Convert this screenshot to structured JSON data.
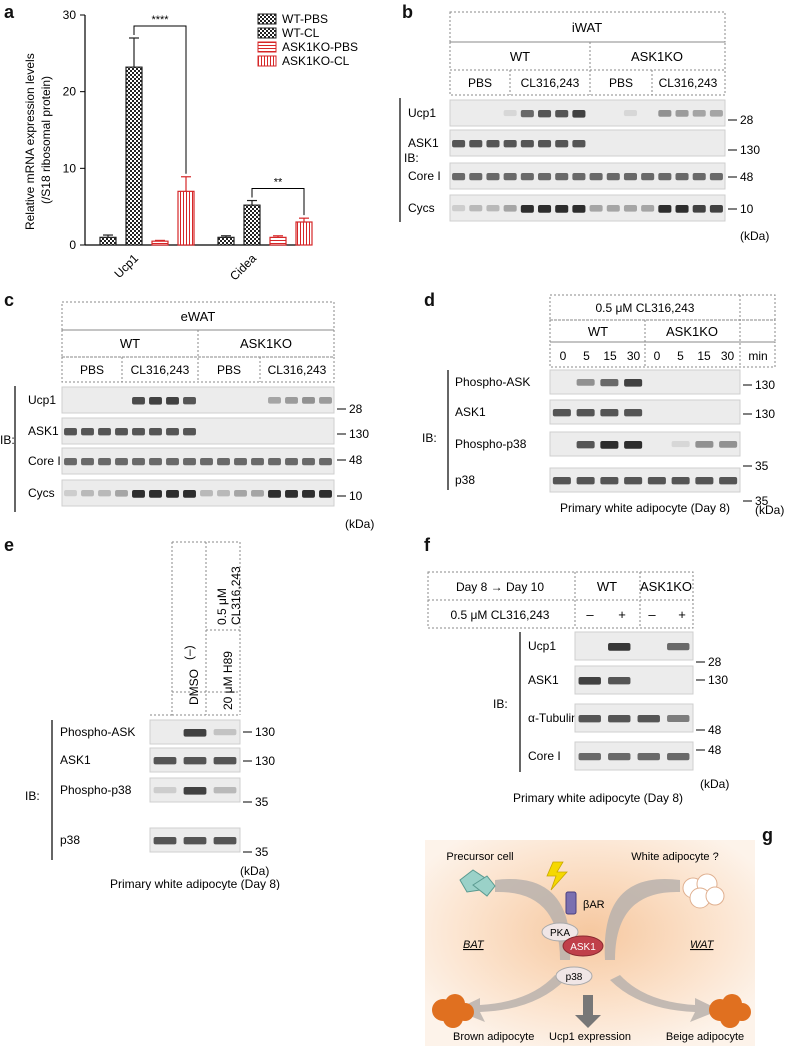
{
  "panel_labels": {
    "a": "a",
    "b": "b",
    "c": "c",
    "d": "d",
    "e": "e",
    "f": "f",
    "g": "g"
  },
  "chart_data": {
    "type": "bar",
    "categories": [
      "Ucp1",
      "Cidea"
    ],
    "series": [
      {
        "name": "WT-PBS",
        "values": [
          1.0,
          1.0
        ],
        "errors": [
          0.3,
          0.2
        ],
        "color": "#222222",
        "pattern": "checker"
      },
      {
        "name": "WT-CL",
        "values": [
          23.2,
          5.2
        ],
        "errors": [
          3.8,
          0.6
        ],
        "color": "#222222",
        "pattern": "checker"
      },
      {
        "name": "ASK1KO-PBS",
        "values": [
          0.5,
          1.0
        ],
        "errors": [
          0.1,
          0.2
        ],
        "color": "#d62728",
        "pattern": "hlines"
      },
      {
        "name": "ASK1KO-CL",
        "values": [
          7.0,
          3.0
        ],
        "errors": [
          1.9,
          0.5
        ],
        "color": "#d62728",
        "pattern": "vlines"
      }
    ],
    "ylabel": "Relative mRNA expression levels\n(/S18 ribosomal protein)",
    "ylim": [
      0,
      30
    ],
    "yticks": [
      "0",
      "10",
      "20",
      "30"
    ],
    "significance": [
      {
        "category": "Ucp1",
        "label": "****"
      },
      {
        "category": "Cidea",
        "label": "**"
      }
    ],
    "legend": "top-right"
  },
  "panel_b": {
    "tissue": "iWAT",
    "genotypes": [
      "WT",
      "ASK1KO"
    ],
    "treatments": [
      "PBS",
      "CL316,243",
      "PBS",
      "CL316,243"
    ],
    "ib_label": "IB:",
    "rows": [
      "Ucp1",
      "ASK1",
      "Core I",
      "Cycs"
    ],
    "markers": [
      "28",
      "130",
      "48",
      "10"
    ],
    "unit": "(kDa)"
  },
  "panel_c": {
    "tissue": "eWAT",
    "genotypes": [
      "WT",
      "ASK1KO"
    ],
    "treatments": [
      "PBS",
      "CL316,243",
      "PBS",
      "CL316,243"
    ],
    "ib_label": "IB:",
    "rows": [
      "Ucp1",
      "ASK1",
      "Core I",
      "Cycs"
    ],
    "markers": [
      "28",
      "130",
      "48",
      "10"
    ],
    "unit": "(kDa)"
  },
  "panel_d": {
    "treatment": "0.5 μM CL316,243",
    "genotypes": [
      "WT",
      "ASK1KO"
    ],
    "times": [
      "0",
      "5",
      "15",
      "30",
      "0",
      "5",
      "15",
      "30"
    ],
    "time_unit": "min",
    "ib_label": "IB:",
    "rows": [
      "Phospho-ASK",
      "ASK1",
      "Phospho-p38",
      "p38"
    ],
    "markers": [
      "130",
      "130",
      "35",
      "35"
    ],
    "unit": "(kDa)",
    "caption": "Primary white adipocyte (Day 8)"
  },
  "panel_e": {
    "col_neg": "(–)",
    "col_treat": "0.5 μM CL316,243",
    "col_dmso": "DMSO",
    "col_h89": "20 μM H89",
    "ib_label": "IB:",
    "rows": [
      "Phospho-ASK",
      "ASK1",
      "Phospho-p38",
      "p38"
    ],
    "markers": [
      "130",
      "130",
      "35",
      "35"
    ],
    "unit": "(kDa)",
    "caption": "Primary white adipocyte (Day 8)"
  },
  "panel_f": {
    "day_label": "Day 8 → Day 10",
    "treat_label": "0.5 μM CL316,243",
    "genotypes": [
      "WT",
      "ASK1KO"
    ],
    "signs": [
      "–",
      "+",
      "–",
      "+"
    ],
    "ib_label": "IB:",
    "rows": [
      "Ucp1",
      "ASK1",
      "α-Tubulin",
      "Core I"
    ],
    "markers": [
      "28",
      "130",
      "48",
      "48"
    ],
    "unit": "(kDa)",
    "caption": "Primary white adipocyte (Day 8)"
  },
  "panel_g": {
    "precursor": "Precursor cell",
    "white": "White adipocyte ?",
    "receptor": "βAR",
    "bat": "BAT",
    "wat": "WAT",
    "pka": "PKA",
    "ask1": "ASK1",
    "p38": "p38",
    "ucp1": "Ucp1 expression",
    "brown": "Brown adipocyte",
    "beige": "Beige adipocyte"
  }
}
